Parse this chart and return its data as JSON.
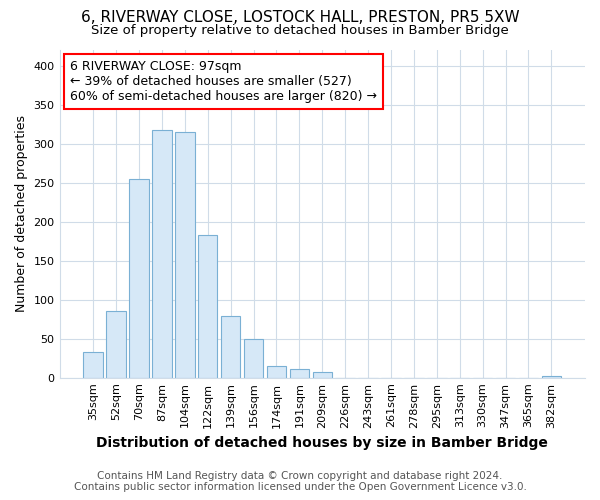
{
  "title": "6, RIVERWAY CLOSE, LOSTOCK HALL, PRESTON, PR5 5XW",
  "subtitle": "Size of property relative to detached houses in Bamber Bridge",
  "xlabel": "Distribution of detached houses by size in Bamber Bridge",
  "ylabel": "Number of detached properties",
  "categories": [
    "35sqm",
    "52sqm",
    "70sqm",
    "87sqm",
    "104sqm",
    "122sqm",
    "139sqm",
    "156sqm",
    "174sqm",
    "191sqm",
    "209sqm",
    "226sqm",
    "243sqm",
    "261sqm",
    "278sqm",
    "295sqm",
    "313sqm",
    "330sqm",
    "347sqm",
    "365sqm",
    "382sqm"
  ],
  "values": [
    33,
    86,
    255,
    318,
    315,
    183,
    79,
    50,
    15,
    11,
    7,
    0,
    0,
    0,
    0,
    0,
    0,
    0,
    0,
    0,
    2
  ],
  "bar_color": "#d6e8f7",
  "bar_edge_color": "#7ab0d4",
  "annotation_text_line1": "6 RIVERWAY CLOSE: 97sqm",
  "annotation_text_line2": "← 39% of detached houses are smaller (527)",
  "annotation_text_line3": "60% of semi-detached houses are larger (820) →",
  "annotation_box_color": "white",
  "annotation_box_edge_color": "red",
  "background_color": "#ffffff",
  "plot_bg_color": "#ffffff",
  "grid_color": "#d0dce8",
  "footer_line1": "Contains HM Land Registry data © Crown copyright and database right 2024.",
  "footer_line2": "Contains public sector information licensed under the Open Government Licence v3.0.",
  "ylim": [
    0,
    420
  ],
  "yticks": [
    0,
    50,
    100,
    150,
    200,
    250,
    300,
    350,
    400
  ],
  "title_fontsize": 11,
  "subtitle_fontsize": 9.5,
  "xlabel_fontsize": 10,
  "ylabel_fontsize": 9,
  "tick_fontsize": 8,
  "annotation_fontsize": 9,
  "footer_fontsize": 7.5,
  "bar_width": 0.85
}
